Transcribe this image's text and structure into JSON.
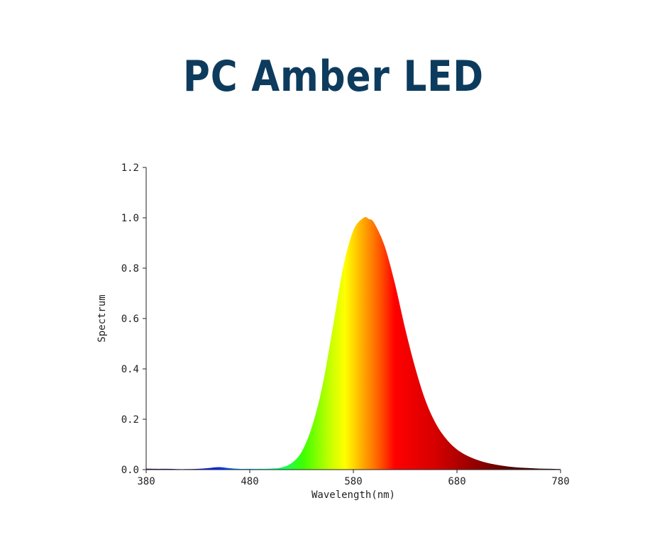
{
  "title": "PC Amber LED",
  "chart_data": {
    "type": "area",
    "title": "PC Amber LED",
    "xlabel": "Wavelength(nm)",
    "ylabel": "Spectrum",
    "xlim": [
      380,
      780
    ],
    "ylim": [
      0,
      1.2
    ],
    "x_ticks": [
      380,
      480,
      580,
      680,
      780
    ],
    "y_ticks": [
      "0.0",
      "0.2",
      "0.4",
      "0.6",
      "0.8",
      "1.0",
      "1.2"
    ],
    "grid": false,
    "legend": "none",
    "fill": "visible-spectrum-gradient",
    "x": [
      380,
      390,
      400,
      410,
      420,
      430,
      440,
      450,
      460,
      470,
      480,
      490,
      500,
      510,
      520,
      530,
      540,
      550,
      560,
      570,
      580,
      590,
      595,
      600,
      610,
      620,
      630,
      640,
      650,
      660,
      670,
      680,
      690,
      700,
      710,
      720,
      730,
      740,
      750,
      760,
      770,
      780
    ],
    "y": [
      0.004,
      0.003,
      0.003,
      0.002,
      0.002,
      0.003,
      0.006,
      0.01,
      0.006,
      0.003,
      0.003,
      0.003,
      0.004,
      0.008,
      0.025,
      0.07,
      0.17,
      0.33,
      0.56,
      0.8,
      0.95,
      1.0,
      0.995,
      0.98,
      0.89,
      0.74,
      0.56,
      0.4,
      0.27,
      0.18,
      0.12,
      0.08,
      0.055,
      0.038,
      0.026,
      0.018,
      0.012,
      0.008,
      0.006,
      0.004,
      0.003,
      0.002
    ]
  }
}
